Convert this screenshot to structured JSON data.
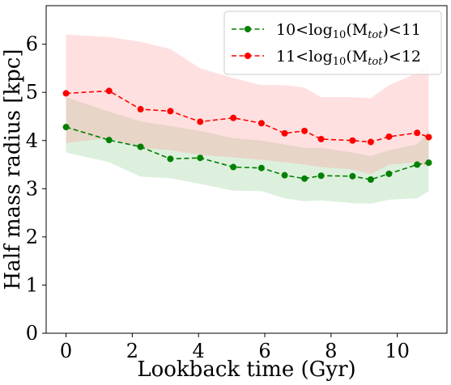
{
  "chart_data": {
    "type": "line",
    "xlabel": "Lookback time (Gyr)",
    "ylabel": "Half mass radius [kpc]",
    "xlim": [
      -0.6,
      11.5
    ],
    "ylim": [
      0,
      6.8
    ],
    "xticks": [
      0,
      2,
      4,
      6,
      8,
      10
    ],
    "yticks": [
      0,
      1,
      2,
      3,
      4,
      5,
      6
    ],
    "legend_position": "top-right",
    "grid": false,
    "x": [
      0,
      1.3,
      2.25,
      3.15,
      4.05,
      5.05,
      5.9,
      6.6,
      7.2,
      7.7,
      8.65,
      9.2,
      9.75,
      10.6,
      10.95
    ],
    "series": [
      {
        "name": "10<log10(Mtot)<11",
        "legend_parts": {
          "prefix": "10<log",
          "sub1": "10",
          "mid": "(M",
          "sub2": "tot",
          "suffix": ")<11"
        },
        "color": "#008000",
        "band_color": "#2ca02c",
        "values": [
          4.28,
          4.01,
          3.87,
          3.62,
          3.64,
          3.45,
          3.43,
          3.28,
          3.21,
          3.27,
          3.26,
          3.19,
          3.31,
          3.5,
          3.54
        ],
        "lower": [
          3.75,
          3.55,
          3.25,
          3.22,
          3.1,
          2.96,
          2.95,
          2.8,
          2.74,
          2.76,
          2.7,
          2.69,
          2.77,
          2.8,
          2.95
        ],
        "upper": [
          4.9,
          4.6,
          4.4,
          4.3,
          4.2,
          4.05,
          4.0,
          3.92,
          3.85,
          3.85,
          3.75,
          3.68,
          3.8,
          3.92,
          4.2
        ]
      },
      {
        "name": "11<log10(Mtot)<12",
        "legend_parts": {
          "prefix": "11<log",
          "sub1": "10",
          "mid": "(M",
          "sub2": "tot",
          "suffix": ")<12"
        },
        "color": "#ff0000",
        "band_color": "#ff9999",
        "values": [
          4.98,
          5.03,
          4.65,
          4.61,
          4.39,
          4.47,
          4.36,
          4.15,
          4.2,
          4.03,
          4.0,
          3.97,
          4.08,
          4.16,
          4.07
        ],
        "lower": [
          3.95,
          4.05,
          3.85,
          3.8,
          3.7,
          3.65,
          3.6,
          3.55,
          3.5,
          3.45,
          3.4,
          3.3,
          3.5,
          3.55,
          3.45
        ],
        "upper": [
          6.2,
          6.15,
          6.05,
          5.9,
          5.5,
          5.3,
          5.15,
          5.15,
          5.1,
          4.9,
          4.9,
          4.88,
          5.15,
          5.4,
          5.6
        ]
      }
    ]
  }
}
